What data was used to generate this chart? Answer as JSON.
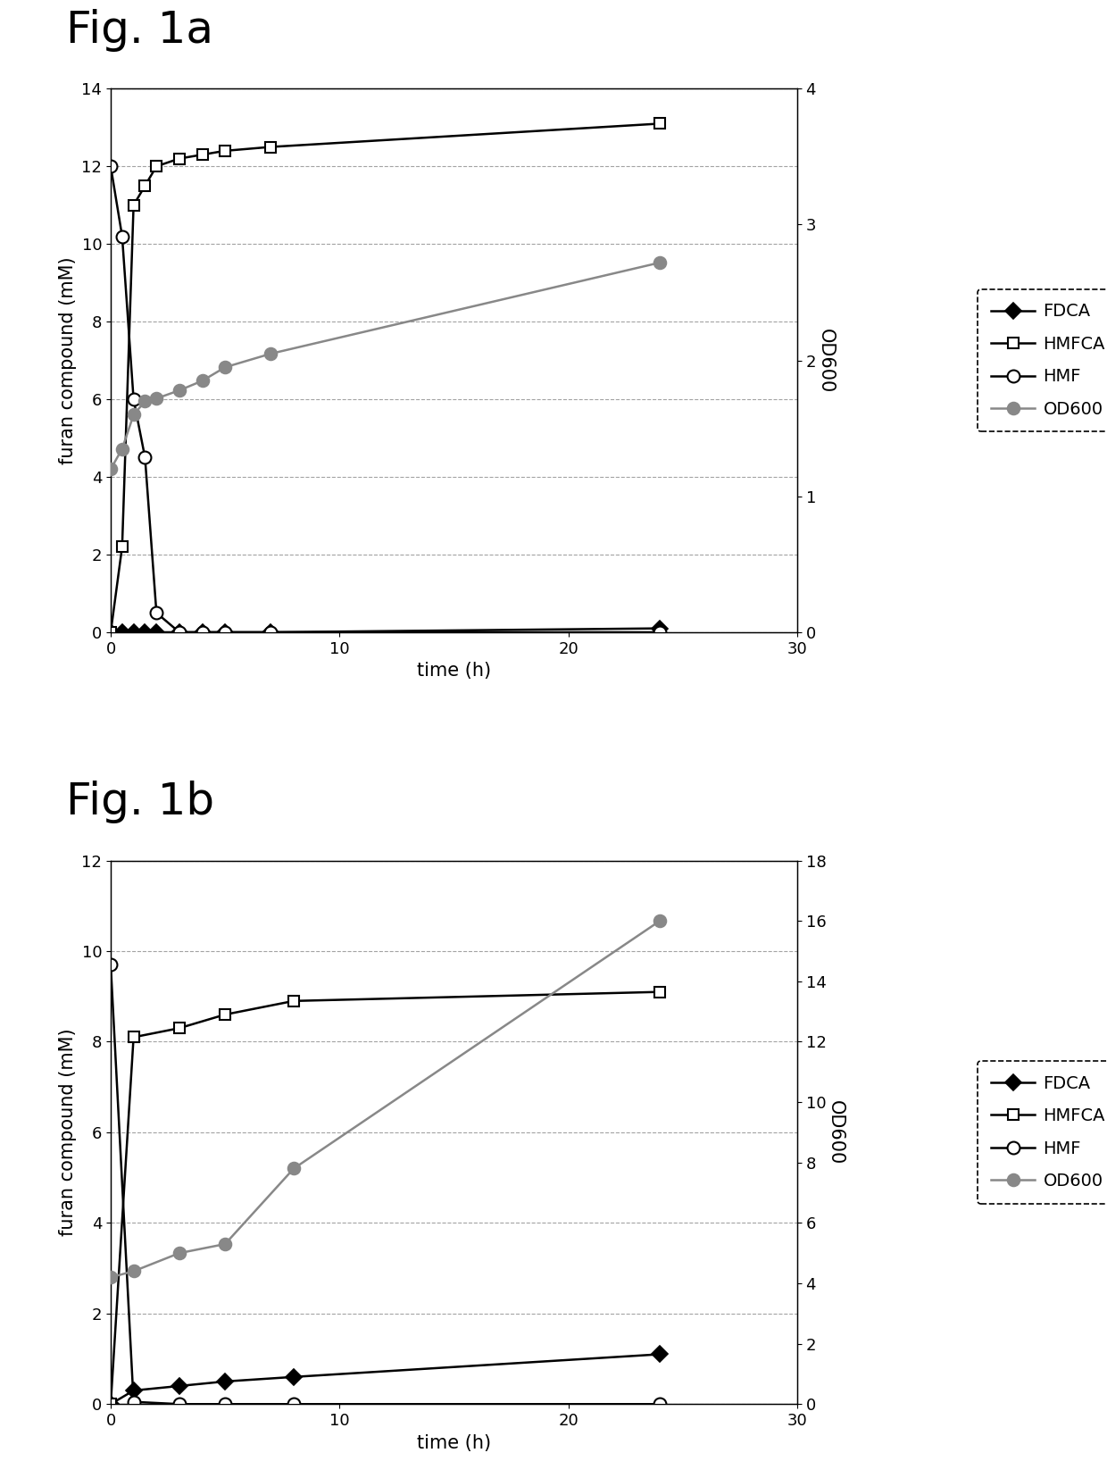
{
  "fig1a": {
    "title": "Fig. 1a",
    "xlabel": "time (h)",
    "ylabel_left": "furan compound (mM)",
    "ylabel_right": "OD600",
    "xlim": [
      0,
      30
    ],
    "ylim_left": [
      0,
      14
    ],
    "ylim_right": [
      0,
      4
    ],
    "yticks_left": [
      0,
      2,
      4,
      6,
      8,
      10,
      12,
      14
    ],
    "yticks_right": [
      0,
      1,
      2,
      3,
      4
    ],
    "xticks": [
      0,
      10,
      20,
      30
    ],
    "FDCA": {
      "x": [
        0,
        0.5,
        1,
        1.5,
        2,
        3,
        4,
        5,
        7,
        24
      ],
      "y": [
        0,
        0,
        0,
        0,
        0,
        0,
        0,
        0,
        0,
        0.1
      ]
    },
    "HMFCA": {
      "x": [
        0,
        0.5,
        1,
        1.5,
        2,
        3,
        4,
        5,
        7,
        24
      ],
      "y": [
        0,
        2.2,
        11.0,
        11.5,
        12.0,
        12.2,
        12.3,
        12.4,
        12.5,
        13.1
      ]
    },
    "HMF": {
      "x": [
        0,
        0.5,
        1,
        1.5,
        2,
        3,
        4,
        5,
        7,
        24
      ],
      "y": [
        12.0,
        10.2,
        6.0,
        4.5,
        0.5,
        0.0,
        0.0,
        0.0,
        0.0,
        0.0
      ]
    },
    "OD600": {
      "x": [
        0,
        0.5,
        1,
        1.5,
        2,
        3,
        4,
        5,
        7,
        24
      ],
      "y_right": [
        1.2,
        1.35,
        1.6,
        1.7,
        1.72,
        1.78,
        1.85,
        1.95,
        2.05,
        2.72
      ]
    }
  },
  "fig1b": {
    "title": "Fig. 1b",
    "xlabel": "time (h)",
    "ylabel_left": "furan compound (mM)",
    "ylabel_right": "OD600",
    "xlim": [
      0,
      30
    ],
    "ylim_left": [
      0,
      12
    ],
    "ylim_right": [
      0,
      18
    ],
    "yticks_left": [
      0,
      2,
      4,
      6,
      8,
      10,
      12
    ],
    "yticks_right": [
      0,
      2,
      4,
      6,
      8,
      10,
      12,
      14,
      16,
      18
    ],
    "xticks": [
      0,
      10,
      20,
      30
    ],
    "FDCA": {
      "x": [
        0,
        1,
        3,
        5,
        8,
        24
      ],
      "y": [
        0,
        0.3,
        0.4,
        0.5,
        0.6,
        1.1
      ]
    },
    "HMFCA": {
      "x": [
        0,
        1,
        3,
        5,
        8,
        24
      ],
      "y": [
        0,
        8.1,
        8.3,
        8.6,
        8.9,
        9.1
      ]
    },
    "HMF": {
      "x": [
        0,
        1,
        3,
        5,
        8,
        24
      ],
      "y": [
        9.7,
        0.05,
        0.0,
        0.0,
        0.0,
        0.0
      ]
    },
    "OD600": {
      "x": [
        0,
        1,
        3,
        5,
        8,
        24
      ],
      "y_right": [
        4.2,
        4.4,
        5.0,
        5.3,
        7.8,
        16.0
      ]
    }
  },
  "background_color": "#ffffff",
  "grid_color": "#999999",
  "legend_order": [
    "FDCA",
    "HMFCA",
    "HMF",
    "OD600"
  ],
  "title_fontsize": 36,
  "label_fontsize": 15,
  "tick_fontsize": 13,
  "legend_fontsize": 14,
  "markersize": 9,
  "linewidth": 1.8
}
